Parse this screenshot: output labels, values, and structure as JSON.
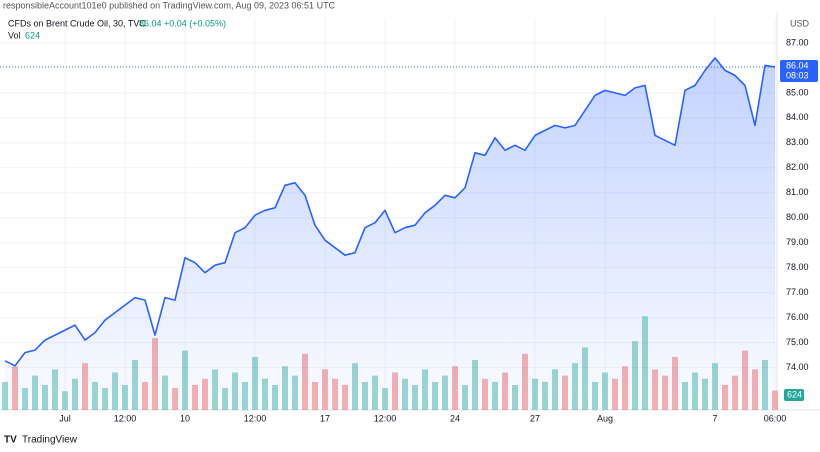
{
  "header": {
    "publisher": "responsibleAccount101e0 published on TradingView.com, Aug 09, 2023 06:51 UTC",
    "brand": "TradingView"
  },
  "chart_data": {
    "type": "area-line",
    "title": "CFDs on Brent Crude Oil, 30, TVC",
    "currency": "USD",
    "change_label": "+0.04 (+0.05%)",
    "countdown": "08:03",
    "volume_label": "Vol",
    "categories": [
      null,
      null,
      null,
      null,
      null,
      null,
      "Jul",
      null,
      null,
      null,
      null,
      null,
      "12:00",
      null,
      null,
      null,
      null,
      null,
      "10",
      null,
      null,
      null,
      null,
      null,
      null,
      "12:00",
      null,
      null,
      null,
      null,
      null,
      null,
      "17",
      null,
      null,
      null,
      null,
      null,
      "12:00",
      null,
      null,
      null,
      null,
      null,
      null,
      "24",
      null,
      null,
      null,
      null,
      null,
      null,
      null,
      "27",
      null,
      null,
      null,
      null,
      null,
      null,
      "Aug",
      null,
      null,
      null,
      null,
      null,
      null,
      null,
      null,
      null,
      null,
      "7",
      null,
      null,
      null,
      null,
      null,
      "06:00"
    ],
    "series": [
      {
        "name": "Price",
        "color": "#2962ff",
        "values": [
          74.27,
          74.07,
          74.6,
          74.7,
          75.1,
          75.3,
          75.5,
          75.7,
          75.1,
          75.4,
          75.9,
          76.2,
          76.5,
          76.8,
          76.7,
          75.3,
          76.8,
          76.7,
          78.4,
          78.2,
          77.8,
          78.1,
          78.2,
          79.4,
          79.6,
          80.1,
          80.3,
          80.4,
          81.3,
          81.4,
          80.9,
          79.7,
          79.1,
          78.8,
          78.5,
          78.6,
          79.6,
          79.8,
          80.3,
          79.4,
          79.6,
          79.7,
          80.2,
          80.5,
          80.9,
          80.8,
          81.2,
          82.6,
          82.5,
          83.2,
          82.7,
          82.9,
          82.7,
          83.3,
          83.5,
          83.7,
          83.6,
          83.7,
          84.3,
          84.9,
          85.1,
          85.0,
          84.9,
          85.2,
          85.3,
          83.3,
          83.1,
          82.9,
          85.1,
          85.3,
          85.9,
          86.4,
          85.9,
          85.7,
          85.3,
          83.7,
          86.1,
          86.04
        ]
      },
      {
        "name": "Vol",
        "axis": "volume",
        "values": [
          900,
          1400,
          700,
          1100,
          800,
          1300,
          600,
          1000,
          1500,
          900,
          700,
          1200,
          800,
          1600,
          900,
          2300,
          1100,
          700,
          1900,
          800,
          1000,
          1300,
          700,
          1200,
          900,
          1700,
          1000,
          800,
          1400,
          1100,
          1800,
          900,
          1300,
          1000,
          800,
          1500,
          900,
          1100,
          700,
          1200,
          1000,
          800,
          1300,
          900,
          1100,
          1400,
          800,
          1600,
          1000,
          900,
          1200,
          800,
          1800,
          1000,
          900,
          1300,
          1100,
          1500,
          2000,
          900,
          1200,
          1000,
          1400,
          2200,
          3000,
          1300,
          1100,
          1700,
          900,
          1200,
          1000,
          1500,
          800,
          1100,
          1900,
          1300,
          1600,
          624
        ]
      }
    ],
    "up_color": "#26a69a",
    "down_color": "#ef5350",
    "ylim": [
      72.3,
      88
    ],
    "yticks": [
      {
        "value": 74,
        "label": "74.00"
      },
      {
        "value": 75,
        "label": "75.00"
      },
      {
        "value": 76,
        "label": "76.00"
      },
      {
        "value": 77,
        "label": "77.00"
      },
      {
        "value": 78,
        "label": "78.00"
      },
      {
        "value": 79,
        "label": "79.00"
      },
      {
        "value": 80,
        "label": "80.00"
      },
      {
        "value": 81,
        "label": "81.00"
      },
      {
        "value": 82,
        "label": "82.00"
      },
      {
        "value": 83,
        "label": "83.00"
      },
      {
        "value": 84,
        "label": "84.00"
      },
      {
        "value": 85,
        "label": "85.00"
      },
      {
        "value": 86,
        "label": "86.00"
      },
      {
        "value": 87,
        "label": "87.00"
      }
    ],
    "volume_lim": [
      0,
      3200
    ],
    "grid": true
  }
}
